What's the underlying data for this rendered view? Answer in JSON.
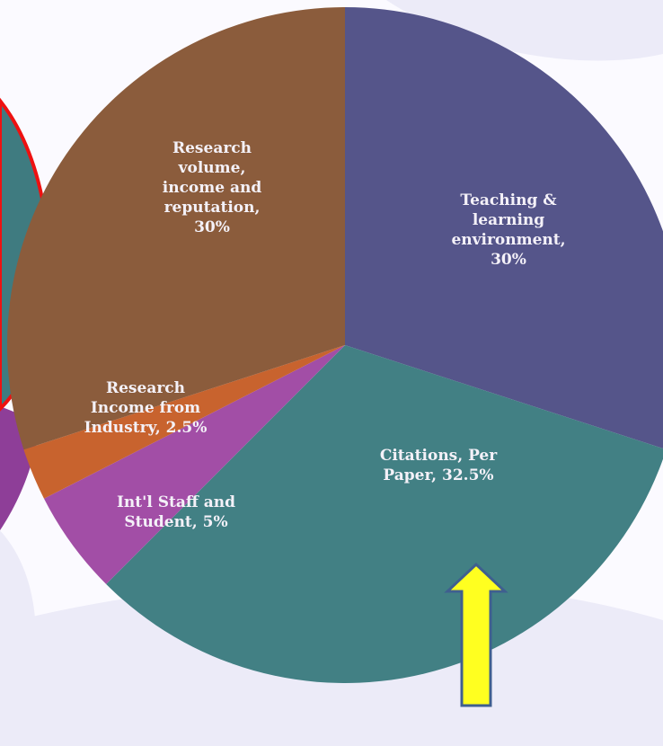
{
  "chart_data": {
    "type": "pie",
    "categories": [
      "Teaching & learning environment, 30%",
      "Citations,  Per Paper, 32.5%",
      "Int'l Staff and Student, 5%",
      "Research Income from Industry, 2.5%",
      "Research volume, income and reputation, 30%"
    ],
    "values": [
      30,
      32.5,
      5,
      2.5,
      30
    ],
    "colors": [
      "#55558a",
      "#428084",
      "#a24ea6",
      "#c8632e",
      "#8b5c3c"
    ]
  }
}
